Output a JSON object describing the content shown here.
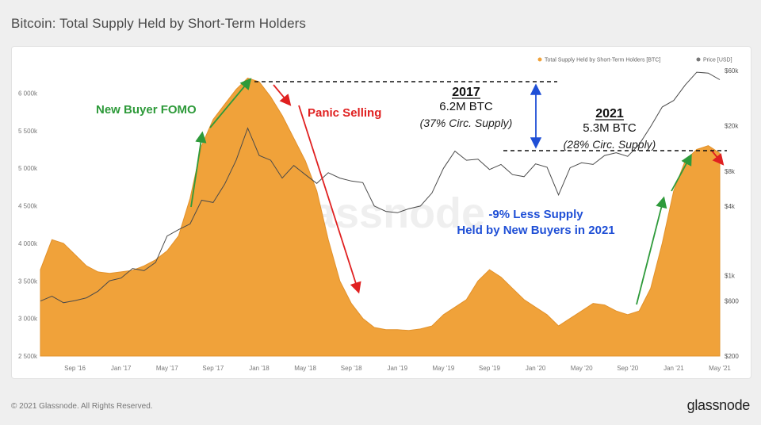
{
  "title": "Bitcoin: Total Supply Held by Short-Term Holders",
  "footer": {
    "copyright": "© 2021 Glassnode. All Rights Reserved.",
    "brand": "glassnode"
  },
  "chart_data": {
    "type": "area",
    "watermark": "glassnode",
    "legend": [
      {
        "label": "Total Supply Held by Short-Term Holders [BTC]",
        "color": "#f0a23a"
      },
      {
        "label": "Price [USD]",
        "color": "#777777"
      }
    ],
    "legend_position": "top-right",
    "x_ticks": [
      "Sep '16",
      "Jan '17",
      "May '17",
      "Sep '17",
      "Jan '18",
      "May '18",
      "Sep '18",
      "Jan '19",
      "May '19",
      "Sep '19",
      "Jan '20",
      "May '20",
      "Sep '20",
      "Jan '21",
      "May '21"
    ],
    "x_range": [
      "2016-06",
      "2021-05"
    ],
    "y_left": {
      "ticks": [
        "2 500k",
        "3 000k",
        "3 500k",
        "4 000k",
        "4 500k",
        "5 000k",
        "5 500k",
        "6 000k"
      ],
      "ylim": [
        2500000,
        6300000
      ]
    },
    "y_right": {
      "scale": "log",
      "ticks": [
        "$200",
        "$600",
        "$1k",
        "$4k",
        "$8k",
        "$20k",
        "$60k"
      ],
      "ylim": [
        200,
        60000
      ]
    },
    "series": [
      {
        "name": "Total Supply Held by Short-Term Holders [BTC]",
        "axis": "left",
        "color": "#f0a23a",
        "points": [
          [
            "2016-06",
            3650000
          ],
          [
            "2016-07",
            4050000
          ],
          [
            "2016-08",
            4000000
          ],
          [
            "2016-09",
            3850000
          ],
          [
            "2016-10",
            3700000
          ],
          [
            "2016-11",
            3620000
          ],
          [
            "2016-12",
            3600000
          ],
          [
            "2017-01",
            3620000
          ],
          [
            "2017-02",
            3640000
          ],
          [
            "2017-03",
            3700000
          ],
          [
            "2017-04",
            3780000
          ],
          [
            "2017-05",
            3900000
          ],
          [
            "2017-06",
            4100000
          ],
          [
            "2017-07",
            4600000
          ],
          [
            "2017-08",
            5300000
          ],
          [
            "2017-09",
            5650000
          ],
          [
            "2017-10",
            5850000
          ],
          [
            "2017-11",
            6050000
          ],
          [
            "2017-12",
            6200000
          ],
          [
            "2018-01",
            6150000
          ],
          [
            "2018-02",
            5950000
          ],
          [
            "2018-03",
            5700000
          ],
          [
            "2018-04",
            5400000
          ],
          [
            "2018-05",
            5100000
          ],
          [
            "2018-06",
            4700000
          ],
          [
            "2018-07",
            4050000
          ],
          [
            "2018-08",
            3500000
          ],
          [
            "2018-09",
            3200000
          ],
          [
            "2018-10",
            3000000
          ],
          [
            "2018-11",
            2880000
          ],
          [
            "2018-12",
            2850000
          ],
          [
            "2019-01",
            2850000
          ],
          [
            "2019-02",
            2840000
          ],
          [
            "2019-03",
            2860000
          ],
          [
            "2019-04",
            2900000
          ],
          [
            "2019-05",
            3050000
          ],
          [
            "2019-06",
            3150000
          ],
          [
            "2019-07",
            3250000
          ],
          [
            "2019-08",
            3500000
          ],
          [
            "2019-09",
            3650000
          ],
          [
            "2019-10",
            3550000
          ],
          [
            "2019-11",
            3400000
          ],
          [
            "2019-12",
            3250000
          ],
          [
            "2020-01",
            3150000
          ],
          [
            "2020-02",
            3050000
          ],
          [
            "2020-03",
            2900000
          ],
          [
            "2020-04",
            3000000
          ],
          [
            "2020-05",
            3100000
          ],
          [
            "2020-06",
            3200000
          ],
          [
            "2020-07",
            3180000
          ],
          [
            "2020-08",
            3100000
          ],
          [
            "2020-09",
            3050000
          ],
          [
            "2020-10",
            3100000
          ],
          [
            "2020-11",
            3400000
          ],
          [
            "2020-12",
            4000000
          ],
          [
            "2021-01",
            4700000
          ],
          [
            "2021-02",
            5100000
          ],
          [
            "2021-03",
            5250000
          ],
          [
            "2021-04",
            5300000
          ],
          [
            "2021-05",
            5200000
          ]
        ]
      },
      {
        "name": "Price [USD]",
        "axis": "right",
        "color": "#555555",
        "points": [
          [
            "2016-06",
            600
          ],
          [
            "2016-07",
            660
          ],
          [
            "2016-08",
            580
          ],
          [
            "2016-09",
            605
          ],
          [
            "2016-10",
            640
          ],
          [
            "2016-11",
            730
          ],
          [
            "2016-12",
            900
          ],
          [
            "2017-01",
            950
          ],
          [
            "2017-02",
            1150
          ],
          [
            "2017-03",
            1100
          ],
          [
            "2017-04",
            1300
          ],
          [
            "2017-05",
            2200
          ],
          [
            "2017-06",
            2500
          ],
          [
            "2017-07",
            2800
          ],
          [
            "2017-08",
            4500
          ],
          [
            "2017-09",
            4300
          ],
          [
            "2017-10",
            6200
          ],
          [
            "2017-11",
            10000
          ],
          [
            "2017-12",
            19000
          ],
          [
            "2018-01",
            11000
          ],
          [
            "2018-02",
            10000
          ],
          [
            "2018-03",
            7000
          ],
          [
            "2018-04",
            9000
          ],
          [
            "2018-05",
            7500
          ],
          [
            "2018-06",
            6300
          ],
          [
            "2018-07",
            7800
          ],
          [
            "2018-08",
            7000
          ],
          [
            "2018-09",
            6600
          ],
          [
            "2018-10",
            6400
          ],
          [
            "2018-11",
            4000
          ],
          [
            "2018-12",
            3600
          ],
          [
            "2019-01",
            3500
          ],
          [
            "2019-02",
            3800
          ],
          [
            "2019-03",
            4000
          ],
          [
            "2019-04",
            5200
          ],
          [
            "2019-05",
            8500
          ],
          [
            "2019-06",
            12000
          ],
          [
            "2019-07",
            10000
          ],
          [
            "2019-08",
            10200
          ],
          [
            "2019-09",
            8300
          ],
          [
            "2019-10",
            9200
          ],
          [
            "2019-11",
            7500
          ],
          [
            "2019-12",
            7200
          ],
          [
            "2020-01",
            9300
          ],
          [
            "2020-02",
            8700
          ],
          [
            "2020-03",
            5000
          ],
          [
            "2020-04",
            8600
          ],
          [
            "2020-05",
            9500
          ],
          [
            "2020-06",
            9200
          ],
          [
            "2020-07",
            11000
          ],
          [
            "2020-08",
            11600
          ],
          [
            "2020-09",
            10800
          ],
          [
            "2020-10",
            13700
          ],
          [
            "2020-11",
            19600
          ],
          [
            "2020-12",
            29000
          ],
          [
            "2021-01",
            33000
          ],
          [
            "2021-02",
            45000
          ],
          [
            "2021-03",
            58000
          ],
          [
            "2021-04",
            57000
          ],
          [
            "2021-05",
            50000
          ]
        ]
      }
    ],
    "annotations": {
      "fomo": "New Buyer FOMO",
      "panic": "Panic Selling",
      "y2017": {
        "year": "2017",
        "btc": "6.2M BTC",
        "pct": "(37% Circ. Supply)"
      },
      "y2021": {
        "year": "2021",
        "btc": "5.3M BTC",
        "pct": "(28% Circ. Supply)"
      },
      "diff_line1": "-9% Less Supply",
      "diff_line2": "Held by New Buyers in 2021"
    }
  }
}
